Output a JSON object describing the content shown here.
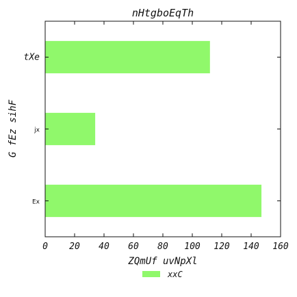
{
  "chart_data": {
    "type": "bar",
    "orientation": "horizontal",
    "title": "nHtgboEqTh",
    "xlabel": "ZQmUf uvNpXl",
    "ylabel": "G fEz  sihF",
    "categories": [
      "txe",
      "jx",
      "Ex"
    ],
    "categories_display": [
      "tXe",
      "jx",
      "Ex"
    ],
    "series": [
      {
        "name": "xxC",
        "values": [
          112,
          34,
          147
        ],
        "color": "#90f86b"
      }
    ],
    "xlim": [
      0,
      160
    ],
    "xticks": [
      0,
      20,
      40,
      60,
      80,
      100,
      120,
      140,
      160
    ],
    "grid": false,
    "legend_position": "bottom-center"
  }
}
